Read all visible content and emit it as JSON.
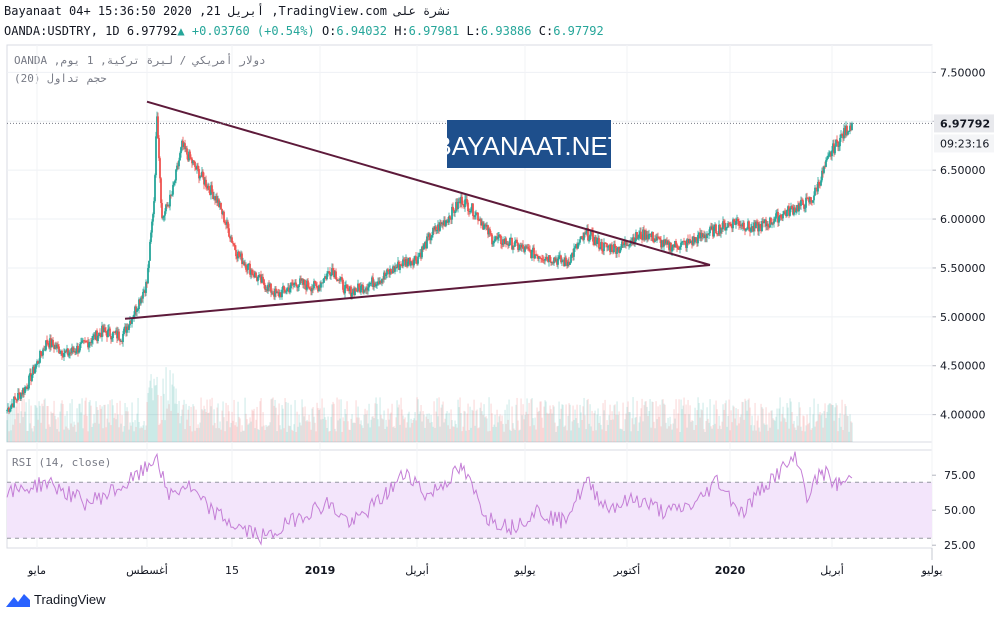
{
  "header": {
    "line1": "Bayanaat 04+ 15:36:50 2020 ,21 أبريل ,TradingView.com نشرة على",
    "symbol": "OANDA:USDTRY, 1D",
    "last": "6.97792",
    "change": "+0.03760 (+0.54%)",
    "o_label": "O:",
    "o": "6.94032",
    "h_label": "H:",
    "h": "6.97981",
    "l_label": "L:",
    "l": "6.93886",
    "c_label": "C:",
    "c": "6.97792"
  },
  "pane_labels": {
    "instrument": "OANDA ,دولار أمريكي / ليرة تركية, 1 يوم",
    "volume": "حجم تداول (20)",
    "rsi": "RSI (14, close)"
  },
  "watermark": "BAYANAAT.NET",
  "footer": {
    "brand": "TradingView"
  },
  "colors": {
    "up": "#26a69a",
    "down": "#ef5350",
    "trendline": "#5d1a3a",
    "rsi_line": "#c47ed6",
    "rsi_band": "#f3e5fb",
    "watermark_bg": "#1e4f8c"
  },
  "chart_data": [
    {
      "type": "candlestick",
      "series_name": "OANDA:USDTRY",
      "x_ticks": [
        "مايو",
        "أغسطس",
        "15",
        "2019",
        "أبريل",
        "يوليو",
        "أكتوبر",
        "2020",
        "أبريل",
        "يوليو"
      ],
      "y_ticks": [
        "7.50000",
        "7.00000",
        "6.50000",
        "6.00000",
        "5.50000",
        "5.00000",
        "4.50000",
        "4.00000"
      ],
      "ylim": [
        3.72,
        7.78
      ],
      "price_label": "6.97792",
      "countdown_label": "09:23:16",
      "close_anchors": [
        {
          "t": 0,
          "v": 4.05
        },
        {
          "t": 20,
          "v": 4.3
        },
        {
          "t": 40,
          "v": 4.75
        },
        {
          "t": 60,
          "v": 4.62
        },
        {
          "t": 75,
          "v": 4.7
        },
        {
          "t": 95,
          "v": 4.85
        },
        {
          "t": 115,
          "v": 4.8
        },
        {
          "t": 125,
          "v": 5.0
        },
        {
          "t": 140,
          "v": 5.35
        },
        {
          "t": 147,
          "v": 6.2
        },
        {
          "t": 150,
          "v": 7.1
        },
        {
          "t": 155,
          "v": 6.0
        },
        {
          "t": 165,
          "v": 6.25
        },
        {
          "t": 175,
          "v": 6.75
        },
        {
          "t": 190,
          "v": 6.5
        },
        {
          "t": 210,
          "v": 6.2
        },
        {
          "t": 230,
          "v": 5.65
        },
        {
          "t": 250,
          "v": 5.4
        },
        {
          "t": 270,
          "v": 5.22
        },
        {
          "t": 290,
          "v": 5.35
        },
        {
          "t": 310,
          "v": 5.3
        },
        {
          "t": 325,
          "v": 5.5
        },
        {
          "t": 340,
          "v": 5.25
        },
        {
          "t": 355,
          "v": 5.3
        },
        {
          "t": 375,
          "v": 5.4
        },
        {
          "t": 395,
          "v": 5.55
        },
        {
          "t": 410,
          "v": 5.6
        },
        {
          "t": 425,
          "v": 5.85
        },
        {
          "t": 440,
          "v": 6.0
        },
        {
          "t": 455,
          "v": 6.2
        },
        {
          "t": 470,
          "v": 6.05
        },
        {
          "t": 485,
          "v": 5.8
        },
        {
          "t": 505,
          "v": 5.75
        },
        {
          "t": 525,
          "v": 5.65
        },
        {
          "t": 545,
          "v": 5.6
        },
        {
          "t": 560,
          "v": 5.55
        },
        {
          "t": 572,
          "v": 5.75
        },
        {
          "t": 580,
          "v": 5.85
        },
        {
          "t": 595,
          "v": 5.72
        },
        {
          "t": 612,
          "v": 5.7
        },
        {
          "t": 625,
          "v": 5.8
        },
        {
          "t": 640,
          "v": 5.85
        },
        {
          "t": 660,
          "v": 5.72
        },
        {
          "t": 680,
          "v": 5.75
        },
        {
          "t": 700,
          "v": 5.85
        },
        {
          "t": 715,
          "v": 5.92
        },
        {
          "t": 730,
          "v": 5.98
        },
        {
          "t": 745,
          "v": 5.9
        },
        {
          "t": 760,
          "v": 5.95
        },
        {
          "t": 775,
          "v": 6.05
        },
        {
          "t": 790,
          "v": 6.12
        },
        {
          "t": 805,
          "v": 6.2
        },
        {
          "t": 815,
          "v": 6.45
        },
        {
          "t": 825,
          "v": 6.7
        },
        {
          "t": 835,
          "v": 6.85
        },
        {
          "t": 845,
          "v": 6.98
        }
      ],
      "trendlines": [
        {
          "from": {
            "t": 140,
            "v": 7.2
          },
          "to": {
            "t": 703,
            "v": 5.53
          }
        },
        {
          "from": {
            "t": 118,
            "v": 4.98
          },
          "to": {
            "t": 703,
            "v": 5.53
          }
        }
      ]
    },
    {
      "type": "bar",
      "series_name": "Volume",
      "note": "volume histogram overlaid at bottom of price pane, no axis scale printed"
    },
    {
      "type": "line",
      "series_name": "RSI",
      "y_ticks": [
        "75.00",
        "50.00",
        "25.00"
      ],
      "ylim": [
        23,
        93
      ],
      "band": [
        30,
        70
      ],
      "anchors": [
        {
          "t": 0,
          "v": 62
        },
        {
          "t": 40,
          "v": 70
        },
        {
          "t": 80,
          "v": 55
        },
        {
          "t": 118,
          "v": 68
        },
        {
          "t": 140,
          "v": 80
        },
        {
          "t": 150,
          "v": 90
        },
        {
          "t": 160,
          "v": 60
        },
        {
          "t": 180,
          "v": 68
        },
        {
          "t": 200,
          "v": 52
        },
        {
          "t": 230,
          "v": 38
        },
        {
          "t": 260,
          "v": 30
        },
        {
          "t": 290,
          "v": 45
        },
        {
          "t": 320,
          "v": 55
        },
        {
          "t": 345,
          "v": 40
        },
        {
          "t": 380,
          "v": 62
        },
        {
          "t": 400,
          "v": 78
        },
        {
          "t": 420,
          "v": 60
        },
        {
          "t": 455,
          "v": 80
        },
        {
          "t": 480,
          "v": 45
        },
        {
          "t": 505,
          "v": 38
        },
        {
          "t": 530,
          "v": 50
        },
        {
          "t": 555,
          "v": 42
        },
        {
          "t": 580,
          "v": 70
        },
        {
          "t": 600,
          "v": 52
        },
        {
          "t": 630,
          "v": 58
        },
        {
          "t": 660,
          "v": 48
        },
        {
          "t": 690,
          "v": 55
        },
        {
          "t": 710,
          "v": 72
        },
        {
          "t": 735,
          "v": 48
        },
        {
          "t": 760,
          "v": 70
        },
        {
          "t": 790,
          "v": 88
        },
        {
          "t": 800,
          "v": 60
        },
        {
          "t": 815,
          "v": 78
        },
        {
          "t": 830,
          "v": 68
        },
        {
          "t": 845,
          "v": 73
        }
      ]
    }
  ]
}
